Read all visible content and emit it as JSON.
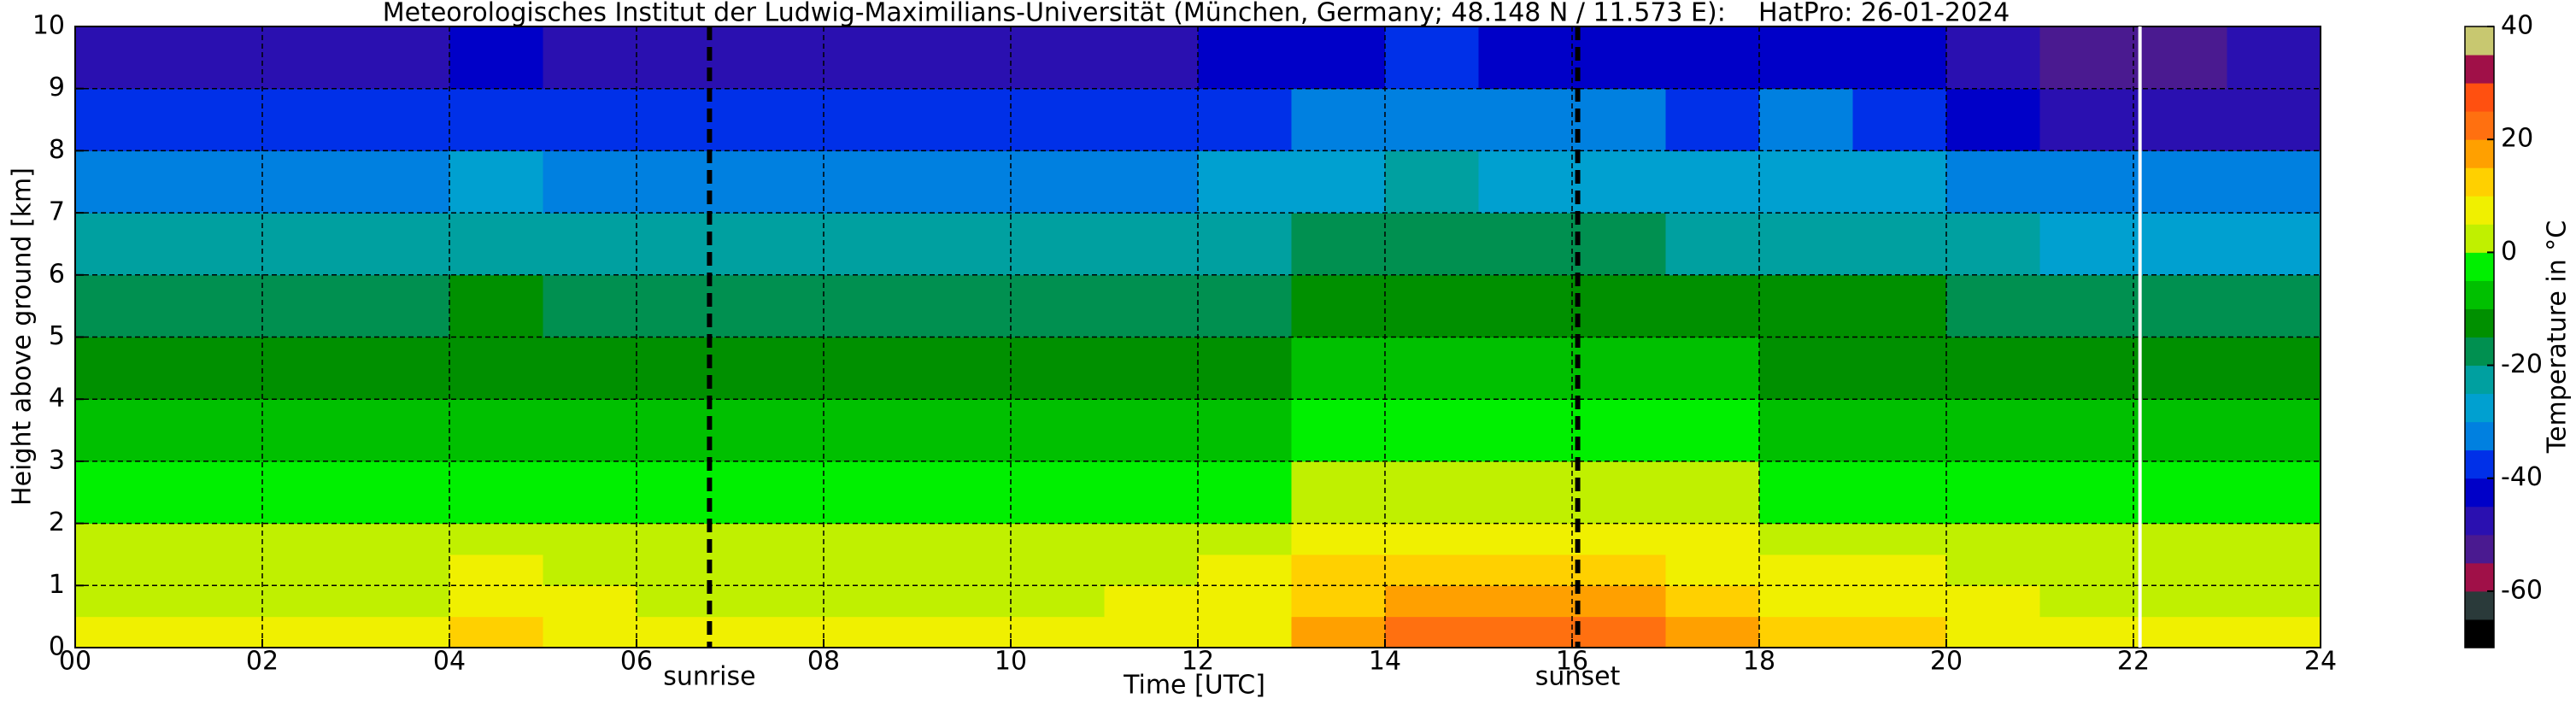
{
  "chart_data": {
    "type": "heatmap",
    "title": "Meteorologisches Institut der Ludwig-Maximilians-Universität (München, Germany; 48.148 N / 11.573 E):    HatPro: 26-01-2024",
    "x_label": "Time [UTC]",
    "y_label": "Height above ground [km]",
    "colorbar_label": "Temperature in °C",
    "x_bins": [
      0,
      1,
      2,
      3,
      4,
      5,
      6,
      7,
      8,
      9,
      10,
      11,
      12,
      13,
      14,
      15,
      16,
      17,
      18,
      19,
      20,
      21,
      22,
      23,
      24
    ],
    "y_bins": [
      0,
      0.5,
      1,
      1.5,
      2,
      3,
      4,
      5,
      6,
      7,
      8,
      9,
      10
    ],
    "values": [
      [
        5,
        5,
        5,
        5,
        12,
        7,
        6,
        6,
        6,
        6,
        6,
        7,
        9,
        17,
        24,
        22,
        24,
        16,
        11,
        10,
        8,
        6,
        6,
        6
      ],
      [
        3,
        3,
        3,
        3,
        8,
        5,
        4,
        4,
        4,
        4,
        4,
        5,
        7,
        13,
        17,
        16,
        17,
        12,
        8,
        7,
        5,
        4,
        4,
        4
      ],
      [
        2,
        2,
        2,
        2,
        5,
        3,
        2,
        2,
        2,
        2,
        2,
        3,
        5,
        10,
        12,
        11,
        12,
        9,
        6,
        5,
        3,
        2,
        2,
        2
      ],
      [
        0,
        0,
        0,
        0,
        3,
        1,
        0,
        0,
        0,
        0,
        0,
        1,
        3,
        7,
        9,
        6,
        9,
        6,
        3,
        2,
        1,
        0,
        0,
        0
      ],
      [
        -4,
        -4,
        -4,
        -4,
        -1,
        -3,
        -4,
        -4,
        -4,
        -4,
        -4,
        -3,
        -1,
        2,
        4,
        1,
        4,
        1,
        -1,
        -2,
        -3,
        -4,
        -4,
        -4
      ],
      [
        -9,
        -9,
        -9,
        -9,
        -6,
        -8,
        -9,
        -9,
        -9,
        -9,
        -9,
        -8,
        -7,
        -4,
        -2,
        -5,
        -2,
        -4,
        -6,
        -7,
        -8,
        -10,
        -10,
        -10
      ],
      [
        -14,
        -14,
        -14,
        -14,
        -11,
        -13,
        -14,
        -14,
        -14,
        -14,
        -14,
        -13,
        -12,
        -9,
        -7,
        -9,
        -7,
        -9,
        -11,
        -11,
        -13,
        -15,
        -15,
        -15
      ],
      [
        -18,
        -18,
        -18,
        -18,
        -15,
        -17,
        -18,
        -18,
        -18,
        -18,
        -18,
        -17,
        -16,
        -13,
        -11,
        -13,
        -12,
        -14,
        -14,
        -15,
        -17,
        -19,
        -19,
        -19
      ],
      [
        -25,
        -25,
        -25,
        -25,
        -21,
        -24,
        -25,
        -25,
        -25,
        -25,
        -25,
        -24,
        -23,
        -19,
        -18,
        -20,
        -18,
        -21,
        -21,
        -22,
        -24,
        -26,
        -26,
        -26
      ],
      [
        -32,
        -32,
        -32,
        -32,
        -29,
        -31,
        -32,
        -32,
        -32,
        -32,
        -32,
        -31,
        -30,
        -26,
        -25,
        -27,
        -26,
        -28,
        -28,
        -29,
        -32,
        -34,
        -34,
        -34
      ],
      [
        -40,
        -40,
        -40,
        -40,
        -36,
        -39,
        -40,
        -40,
        -40,
        -40,
        -40,
        -39,
        -38,
        -33,
        -32,
        -35,
        -33,
        -36,
        -35,
        -37,
        -44,
        -46,
        -46,
        -46
      ],
      [
        -48,
        -48,
        -48,
        -48,
        -45,
        -47,
        -47,
        -47,
        -47,
        -47,
        -47,
        -46,
        -45,
        -41,
        -40,
        -43,
        -41,
        -44,
        -43,
        -45,
        -50,
        -52,
        -52,
        -50
      ]
    ],
    "xlim": [
      0,
      24
    ],
    "xticks": [
      {
        "value": 0,
        "label": "00"
      },
      {
        "value": 2,
        "label": "02"
      },
      {
        "value": 4,
        "label": "04"
      },
      {
        "value": 6,
        "label": "06"
      },
      {
        "value": 8,
        "label": "08"
      },
      {
        "value": 10,
        "label": "10"
      },
      {
        "value": 12,
        "label": "12"
      },
      {
        "value": 14,
        "label": "14"
      },
      {
        "value": 16,
        "label": "16"
      },
      {
        "value": 18,
        "label": "18"
      },
      {
        "value": 20,
        "label": "20"
      },
      {
        "value": 22,
        "label": "22"
      },
      {
        "value": 24,
        "label": "24"
      }
    ],
    "ylim": [
      0,
      10
    ],
    "yticks": [
      0,
      1,
      2,
      3,
      4,
      5,
      6,
      7,
      8,
      9,
      10
    ],
    "grid": true,
    "zlim": [
      -70,
      40
    ],
    "zticks": [
      -60,
      -40,
      -20,
      0,
      20,
      40
    ],
    "colors": [
      "#000000",
      "#2a3a3a",
      "#a01048",
      "#4a1a90",
      "#2a10b0",
      "#0000c8",
      "#0030e8",
      "#0080e0",
      "#00a0d0",
      "#00a0a0",
      "#009050",
      "#009000",
      "#00c000",
      "#00f000",
      "#c0f000",
      "#f0f000",
      "#ffd000",
      "#ffa000",
      "#ff7010",
      "#ff5010",
      "#a01048",
      "#c8c870"
    ],
    "events": [
      {
        "x": 6.78,
        "label": "sunrise"
      },
      {
        "x": 16.06,
        "label": "sunset"
      }
    ],
    "gap_line": {
      "x": 22.07,
      "color": "#ffffff"
    }
  }
}
